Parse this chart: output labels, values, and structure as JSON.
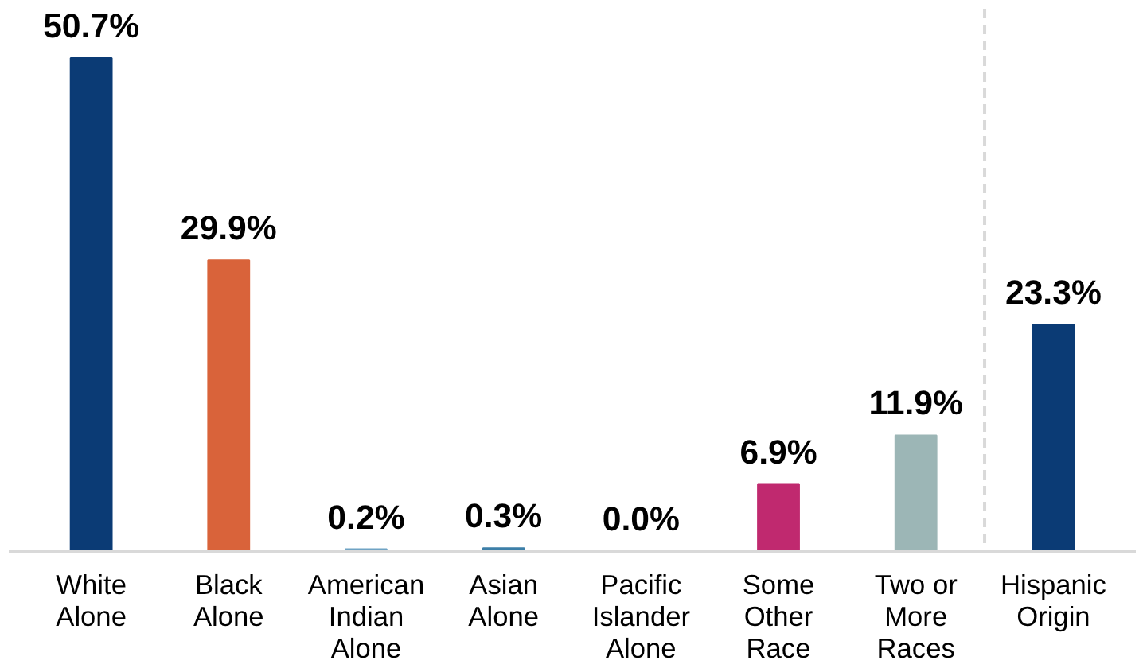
{
  "chart_data": {
    "type": "bar",
    "categories": [
      "White\nAlone",
      "Black\nAlone",
      "American\nIndian\nAlone",
      "Asian\nAlone",
      "Pacific\nIslander\nAlone",
      "Some\nOther\nRace",
      "Two or\nMore\nRaces",
      "Hispanic\nOrigin"
    ],
    "values": [
      50.7,
      29.9,
      0.2,
      0.3,
      0.0,
      6.9,
      11.9,
      23.3
    ],
    "colors": [
      "#0b3b75",
      "#d9633a",
      "#6fa3c4",
      "#3d7fa8",
      "#1f4e79",
      "#c0296f",
      "#9cb6b6",
      "#0b3b75"
    ],
    "value_labels": [
      "50.7%",
      "29.9%",
      "0.2%",
      "0.3%",
      "0.0%",
      "6.9%",
      "11.9%",
      "23.3%"
    ],
    "grid": false
  }
}
